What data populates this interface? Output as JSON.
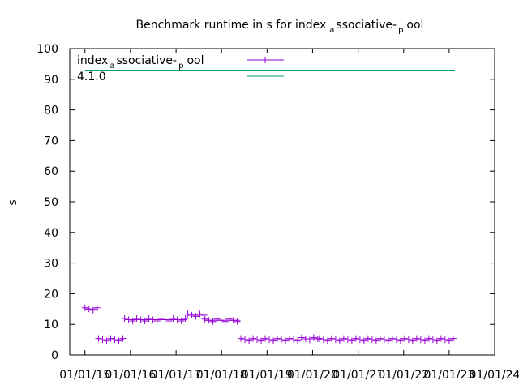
{
  "chart_data": {
    "type": "scatter",
    "title": {
      "main": "Benchmark runtime in s for index",
      "sub1": "a",
      "mid": "ssociative-",
      "sub2": "p",
      "end": "ool"
    },
    "ylabel": "s",
    "xlabel": "",
    "ylim": [
      0,
      100
    ],
    "xlim": [
      "2014-09-01",
      "2024-01-01"
    ],
    "y_ticks": [
      "0",
      "10",
      "20",
      "30",
      "40",
      "50",
      "60",
      "70",
      "80",
      "90",
      "100"
    ],
    "x_ticks": [
      {
        "date": "2015-01-01",
        "label": "01/01/15"
      },
      {
        "date": "2016-01-01",
        "label": "01/01/16"
      },
      {
        "date": "2017-01-01",
        "label": "01/01/17"
      },
      {
        "date": "2018-01-01",
        "label": "01/01/18"
      },
      {
        "date": "2019-01-01",
        "label": "01/01/19"
      },
      {
        "date": "2020-01-01",
        "label": "01/01/20"
      },
      {
        "date": "2021-01-01",
        "label": "01/01/21"
      },
      {
        "date": "2022-01-01",
        "label": "01/01/22"
      },
      {
        "date": "2023-01-01",
        "label": "01/01/23"
      },
      {
        "date": "2024-01-01",
        "label": "01/01/24"
      }
    ],
    "grid": false,
    "legend_position": "top-left",
    "series": [
      {
        "name": {
          "main": "index",
          "sub1": "a",
          "mid": "ssociative-",
          "sub2": "p",
          "end": "ool"
        },
        "color": "#9400d3",
        "marker": "plus",
        "segments": [
          {
            "start": "2015-01-01",
            "end": "2015-04-15",
            "y": 15
          },
          {
            "start": "2015-04-20",
            "end": "2015-11-10",
            "y": 5
          },
          {
            "start": "2015-11-15",
            "end": "2017-04-01",
            "y": 11.5
          },
          {
            "start": "2017-04-05",
            "end": "2017-08-15",
            "y": 13
          },
          {
            "start": "2017-08-20",
            "end": "2018-06-01",
            "y": 11.3
          },
          {
            "start": "2018-06-05",
            "end": "2019-10-01",
            "y": 5
          },
          {
            "start": "2019-10-05",
            "end": "2020-02-20",
            "y": 5.3
          },
          {
            "start": "2020-02-25",
            "end": "2023-02-15",
            "y": 5
          }
        ]
      },
      {
        "name": "4.1.0",
        "color": "#009e73",
        "reference_line": {
          "start": "2015-01-01",
          "end": "2023-02-15",
          "y": 93
        }
      }
    ]
  }
}
